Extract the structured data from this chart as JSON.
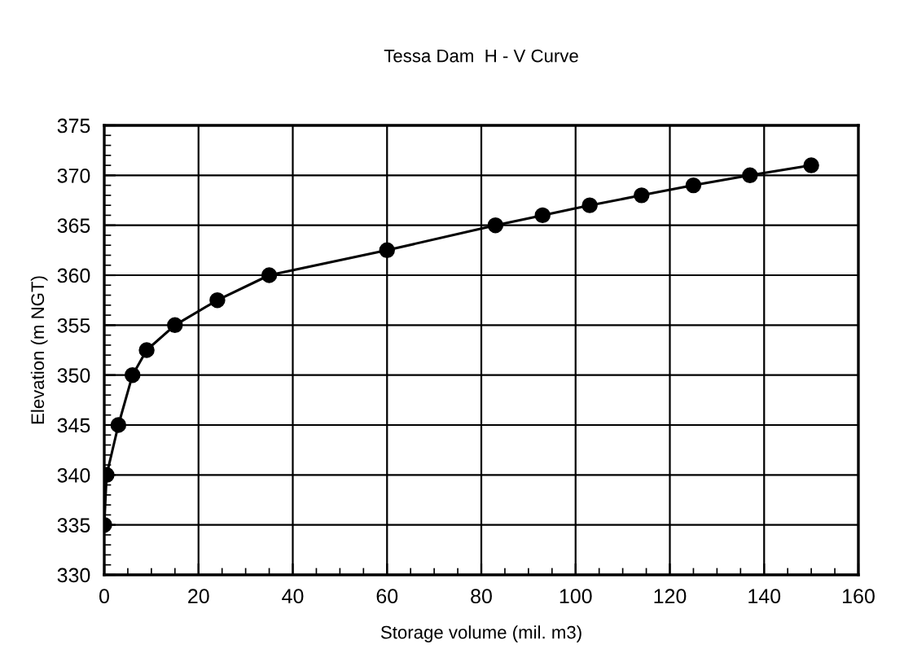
{
  "chart_data": {
    "type": "line",
    "title": "Tessa Dam  H - V Curve",
    "xlabel": "Storage volume (mil. m3)",
    "ylabel": "Elevation (m NGT)",
    "x": [
      0,
      0.5,
      3,
      6,
      9,
      15,
      24,
      35,
      60,
      83,
      93,
      103,
      114,
      125,
      137,
      150
    ],
    "series": [
      {
        "color": "#000000",
        "values": [
          335,
          340,
          345,
          350,
          352.5,
          355,
          357.5,
          360,
          362.5,
          365,
          366,
          367,
          368,
          369,
          370,
          371
        ]
      }
    ],
    "xlim": [
      0,
      160
    ],
    "xticks": [
      0,
      20,
      40,
      60,
      80,
      100,
      120,
      140,
      160
    ],
    "ylim": [
      330,
      375
    ],
    "yticks": [
      330,
      335,
      340,
      345,
      350,
      355,
      360,
      365,
      370,
      375
    ],
    "grid": true,
    "marker": "circle",
    "line_style": "solid"
  }
}
